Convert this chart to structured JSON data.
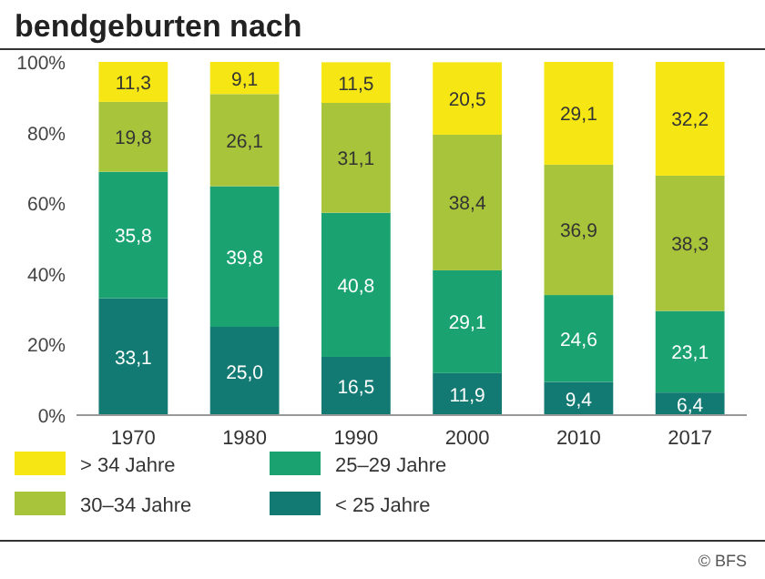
{
  "chart_data": {
    "type": "bar",
    "stacked": true,
    "title": "bendgeburten nach",
    "categories": [
      "1970",
      "1980",
      "1990",
      "2000",
      "2010",
      "2017"
    ],
    "series": [
      {
        "name": "< 25 Jahre",
        "color": "#127a72",
        "values": [
          33.1,
          25.0,
          16.5,
          11.9,
          9.4,
          6.4
        ],
        "value_labels": [
          "33,1",
          "25,0",
          "16,5",
          "11,9",
          "9,4",
          "6,4"
        ]
      },
      {
        "name": "25–29 Jahre",
        "color": "#1aa371",
        "values": [
          35.8,
          39.8,
          40.8,
          29.1,
          24.6,
          23.1
        ],
        "value_labels": [
          "35,8",
          "39,8",
          "40,8",
          "29,1",
          "24,6",
          "23,1"
        ]
      },
      {
        "name": "30–34 Jahre",
        "color": "#a8c43a",
        "values": [
          19.8,
          26.1,
          31.1,
          38.4,
          36.9,
          38.3
        ],
        "value_labels": [
          "19,8",
          "26,1",
          "31,1",
          "38,4",
          "36,9",
          "38,3"
        ]
      },
      {
        "name": "> 34 Jahre",
        "color": "#f5e614",
        "values": [
          11.3,
          9.1,
          11.5,
          20.5,
          29.1,
          32.2
        ],
        "value_labels": [
          "11,3",
          "9,1",
          "11,5",
          "20,5",
          "29,1",
          "32,2"
        ]
      }
    ],
    "ylim": [
      0,
      100
    ],
    "yticks": [
      {
        "value": 0,
        "label": "0%"
      },
      {
        "value": 20,
        "label": "20%"
      },
      {
        "value": 40,
        "label": "40%"
      },
      {
        "value": 60,
        "label": "60%"
      },
      {
        "value": 80,
        "label": "80%"
      },
      {
        "value": 100,
        "label": "100%"
      }
    ],
    "legend": "bottom",
    "annotations": [
      "© BFS"
    ]
  }
}
